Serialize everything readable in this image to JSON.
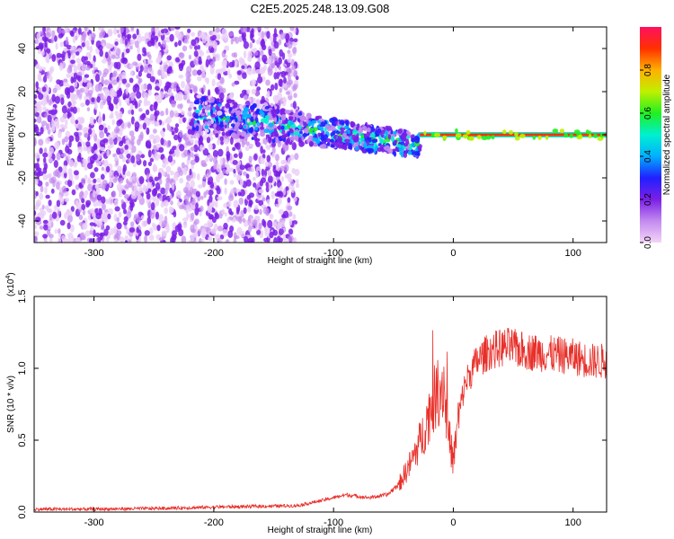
{
  "title": "C2E5.2025.248.13.09.G08",
  "colors": {
    "snr_line": "#e8302a",
    "frame": "#000000",
    "colorbar_stops": [
      "#f4d4f8",
      "#c38af0",
      "#7b1fe6",
      "#2020ff",
      "#00b0ff",
      "#00f0d0",
      "#20f020",
      "#c0f000",
      "#ffb000",
      "#ff3000",
      "#ff1060"
    ]
  },
  "chart_data": [
    {
      "type": "heatmap",
      "xlabel": "Height of straight line (km)",
      "ylabel": "Frequency (Hz)",
      "xlim": [
        -350,
        128
      ],
      "ylim": [
        -50,
        50
      ],
      "x_ticks": [
        "-300",
        "-200",
        "-100",
        "0",
        "100"
      ],
      "y_ticks": [
        "-40",
        "-20",
        "0",
        "20",
        "40"
      ],
      "colorbar": {
        "label": "Normalized spectral amplitude",
        "range": [
          0,
          1
        ],
        "ticks": [
          "0.0",
          "0.2",
          "0.4",
          "0.6",
          "0.8"
        ]
      },
      "features": {
        "broadband_noise_range_km": [
          -350,
          -130
        ],
        "scatter_band_range_km": [
          -220,
          -28
        ],
        "center_freq_start_hz": 10,
        "center_freq_end_hz": -5,
        "tone_range_km": [
          -28,
          128
        ],
        "tone_freq_hz": 0
      }
    },
    {
      "type": "line",
      "xlabel": "Height of straight line (km)",
      "ylabel": "SNR (10 * v/v)",
      "multiplier": "(x10",
      "multiplier_exp": "4",
      "multiplier_close": ")",
      "xlim": [
        -350,
        128
      ],
      "ylim": [
        0,
        1.5
      ],
      "x_ticks": [
        "-300",
        "-200",
        "-100",
        "0",
        "100"
      ],
      "y_ticks": [
        "0.0",
        "0.5",
        "1.0",
        "1.5"
      ],
      "series": [
        {
          "x": [
            -350,
            -300,
            -250,
            -220,
            -200,
            -160,
            -130,
            -110,
            -90,
            -70,
            -55,
            -45,
            -35,
            -25,
            -18,
            -12,
            -8,
            -5,
            0,
            5,
            10,
            20,
            30,
            45,
            60,
            80,
            100,
            115,
            128
          ],
          "y": [
            0.02,
            0.02,
            0.025,
            0.03,
            0.035,
            0.04,
            0.045,
            0.08,
            0.12,
            0.1,
            0.12,
            0.2,
            0.35,
            0.55,
            0.75,
            0.85,
            0.9,
            0.6,
            0.35,
            0.7,
            0.9,
            1.05,
            1.12,
            1.15,
            1.12,
            1.1,
            1.08,
            1.05,
            1.05
          ]
        }
      ]
    }
  ]
}
